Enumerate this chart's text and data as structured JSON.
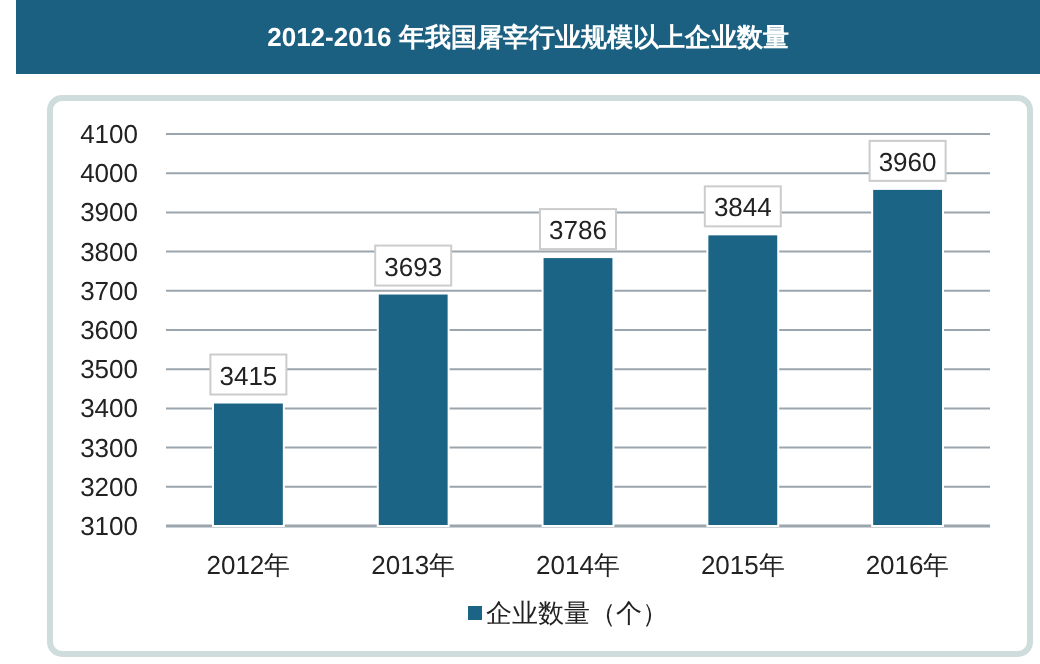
{
  "chart_data": {
    "type": "bar",
    "title": "2012-2016 年我国屠宰行业规模以上企业数量",
    "categories": [
      "2012年",
      "2013年",
      "2014年",
      "2015年",
      "2016年"
    ],
    "series": [
      {
        "name": "企业数量（个）",
        "color": "#1b6485",
        "values": [
          3415,
          3693,
          3786,
          3844,
          3960
        ]
      }
    ],
    "ylim": [
      3100,
      4100
    ],
    "yticks": [
      3100,
      3200,
      3300,
      3400,
      3500,
      3600,
      3700,
      3800,
      3900,
      4000,
      4100
    ],
    "grid": "y",
    "legend": "bottom",
    "data_labels": true
  }
}
